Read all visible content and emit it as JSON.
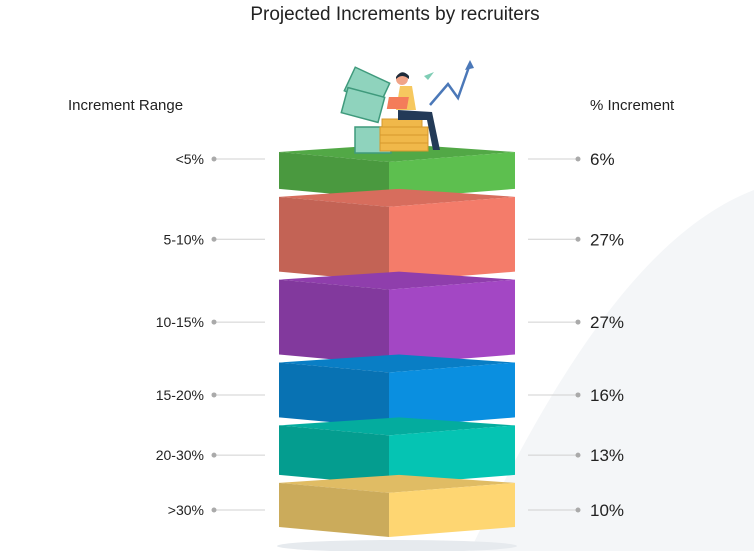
{
  "chart_data": {
    "type": "stacked-block-infographic",
    "title": "Projected Increments by recruiters",
    "left_header": "Increment Range",
    "right_header": "% Increment",
    "categories": [
      "<5%",
      "5-10%",
      "10-15%",
      "15-20%",
      "20-30%",
      ">30%"
    ],
    "values": [
      6,
      27,
      27,
      16,
      13,
      10
    ],
    "value_labels": [
      "6%",
      "27%",
      "27%",
      "16%",
      "13%",
      "10%"
    ],
    "colors": [
      "#5dbf4f",
      "#f47c6a",
      "#a347c4",
      "#0a8fe0",
      "#05c4b3",
      "#fed672"
    ]
  }
}
